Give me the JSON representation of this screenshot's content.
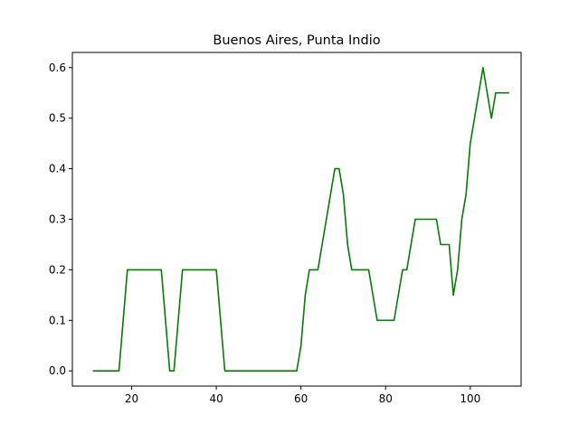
{
  "chart_data": {
    "type": "line",
    "title": "Buenos Aires, Punta Indio",
    "xlabel": "",
    "ylabel": "",
    "xlim": [
      6,
      112
    ],
    "ylim": [
      -0.03,
      0.63
    ],
    "xticks": [
      20,
      40,
      60,
      80,
      100
    ],
    "yticks": [
      0.0,
      0.1,
      0.2,
      0.3,
      0.4,
      0.5,
      0.6
    ],
    "xtick_labels": [
      "20",
      "40",
      "60",
      "80",
      "100"
    ],
    "ytick_labels": [
      "0.0",
      "0.1",
      "0.2",
      "0.3",
      "0.4",
      "0.5",
      "0.6"
    ],
    "grid": false,
    "series": [
      {
        "color": "#008000",
        "x": [
          11,
          17,
          19,
          27,
          29,
          30,
          32,
          40,
          42,
          59,
          60,
          61,
          62,
          63,
          64,
          68,
          69,
          70,
          71,
          72,
          76,
          77,
          78,
          82,
          83,
          84,
          85,
          86,
          87,
          92,
          93,
          95,
          96,
          97,
          98,
          99,
          100,
          103,
          105,
          106,
          109
        ],
        "y": [
          0.0,
          0.0,
          0.2,
          0.2,
          0.0,
          0.0,
          0.2,
          0.2,
          0.0,
          0.0,
          0.05,
          0.15,
          0.2,
          0.2,
          0.2,
          0.4,
          0.4,
          0.35,
          0.25,
          0.2,
          0.2,
          0.15,
          0.1,
          0.1,
          0.15,
          0.2,
          0.2,
          0.25,
          0.3,
          0.3,
          0.25,
          0.25,
          0.15,
          0.2,
          0.3,
          0.35,
          0.45,
          0.6,
          0.5,
          0.55,
          0.55
        ]
      }
    ]
  }
}
